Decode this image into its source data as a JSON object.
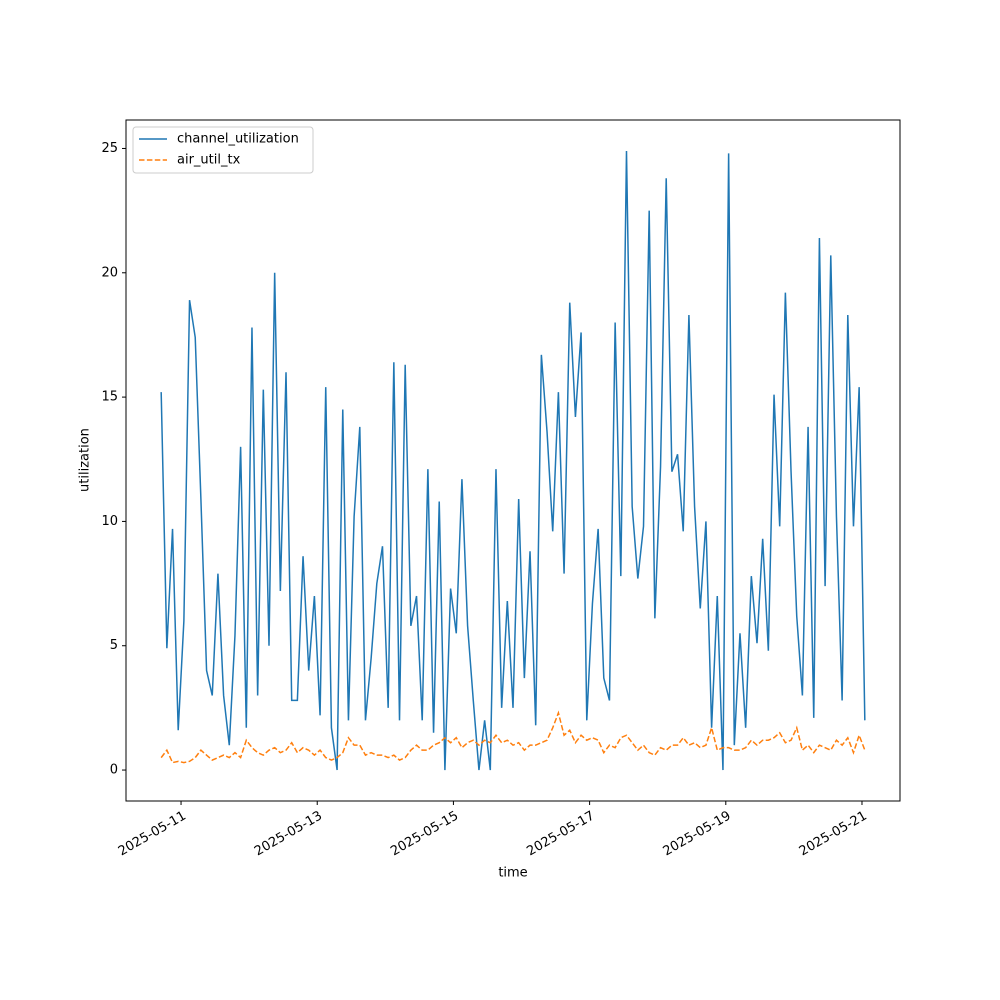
{
  "chart_data": {
    "type": "line",
    "xlabel": "time",
    "ylabel": "utilization",
    "x": [
      "2025-05-10 17:00",
      "2025-05-10 19:00",
      "2025-05-10 21:00",
      "2025-05-10 23:00",
      "2025-05-11 01:00",
      "2025-05-11 03:00",
      "2025-05-11 05:00",
      "2025-05-11 07:00",
      "2025-05-11 09:00",
      "2025-05-11 11:00",
      "2025-05-11 13:00",
      "2025-05-11 15:00",
      "2025-05-11 17:00",
      "2025-05-11 19:00",
      "2025-05-11 21:00",
      "2025-05-11 23:00",
      "2025-05-12 01:00",
      "2025-05-12 03:00",
      "2025-05-12 05:00",
      "2025-05-12 07:00",
      "2025-05-12 09:00",
      "2025-05-12 11:00",
      "2025-05-12 13:00",
      "2025-05-12 15:00",
      "2025-05-12 17:00",
      "2025-05-12 19:00",
      "2025-05-12 21:00",
      "2025-05-12 23:00",
      "2025-05-13 01:00",
      "2025-05-13 03:00",
      "2025-05-13 05:00",
      "2025-05-13 07:00",
      "2025-05-13 09:00",
      "2025-05-13 11:00",
      "2025-05-13 13:00",
      "2025-05-13 15:00",
      "2025-05-13 17:00",
      "2025-05-13 19:00",
      "2025-05-13 21:00",
      "2025-05-13 23:00",
      "2025-05-14 01:00",
      "2025-05-14 03:00",
      "2025-05-14 05:00",
      "2025-05-14 07:00",
      "2025-05-14 09:00",
      "2025-05-14 11:00",
      "2025-05-14 13:00",
      "2025-05-14 15:00",
      "2025-05-14 17:00",
      "2025-05-14 19:00",
      "2025-05-14 21:00",
      "2025-05-14 23:00",
      "2025-05-15 01:00",
      "2025-05-15 03:00",
      "2025-05-15 05:00",
      "2025-05-15 07:00",
      "2025-05-15 09:00",
      "2025-05-15 11:00",
      "2025-05-15 13:00",
      "2025-05-15 15:00",
      "2025-05-15 17:00",
      "2025-05-15 19:00",
      "2025-05-15 21:00",
      "2025-05-15 23:00",
      "2025-05-16 01:00",
      "2025-05-16 03:00",
      "2025-05-16 05:00",
      "2025-05-16 07:00",
      "2025-05-16 09:00",
      "2025-05-16 11:00",
      "2025-05-16 13:00",
      "2025-05-16 15:00",
      "2025-05-16 17:00",
      "2025-05-16 19:00",
      "2025-05-16 21:00",
      "2025-05-16 23:00",
      "2025-05-17 01:00",
      "2025-05-17 03:00",
      "2025-05-17 05:00",
      "2025-05-17 07:00",
      "2025-05-17 09:00",
      "2025-05-17 11:00",
      "2025-05-17 13:00",
      "2025-05-17 15:00",
      "2025-05-17 17:00",
      "2025-05-17 19:00",
      "2025-05-17 21:00",
      "2025-05-17 23:00",
      "2025-05-18 01:00",
      "2025-05-18 03:00",
      "2025-05-18 05:00",
      "2025-05-18 07:00",
      "2025-05-18 09:00",
      "2025-05-18 11:00",
      "2025-05-18 13:00",
      "2025-05-18 15:00",
      "2025-05-18 17:00",
      "2025-05-18 19:00",
      "2025-05-18 21:00",
      "2025-05-18 23:00",
      "2025-05-19 01:00",
      "2025-05-19 03:00",
      "2025-05-19 05:00",
      "2025-05-19 07:00",
      "2025-05-19 09:00",
      "2025-05-19 11:00",
      "2025-05-19 13:00",
      "2025-05-19 15:00",
      "2025-05-19 17:00",
      "2025-05-19 19:00",
      "2025-05-19 21:00",
      "2025-05-19 23:00",
      "2025-05-20 01:00",
      "2025-05-20 03:00",
      "2025-05-20 05:00",
      "2025-05-20 07:00",
      "2025-05-20 09:00",
      "2025-05-20 11:00",
      "2025-05-20 13:00",
      "2025-05-20 15:00",
      "2025-05-20 17:00",
      "2025-05-20 19:00",
      "2025-05-20 21:00",
      "2025-05-20 23:00",
      "2025-05-21 01:00"
    ],
    "series": [
      {
        "name": "channel_utilization",
        "color": "#1f77b4",
        "linestyle": "solid",
        "values": [
          15.2,
          4.9,
          9.7,
          1.6,
          6,
          18.9,
          17.4,
          10.9,
          4,
          3,
          7.9,
          3,
          1,
          5.4,
          13,
          1.7,
          17.8,
          3,
          15.3,
          5,
          20,
          7.2,
          16,
          2.8,
          2.8,
          8.6,
          4,
          7,
          2.2,
          15.4,
          1.7,
          0,
          14.5,
          2,
          10.2,
          13.8,
          2,
          4.5,
          7.5,
          9,
          2.5,
          16.4,
          2,
          16.3,
          5.8,
          7,
          2,
          12.1,
          1.5,
          10.8,
          0,
          7.3,
          5.5,
          11.7,
          5.8,
          2.8,
          0,
          2,
          0,
          12.1,
          2.5,
          6.8,
          2.5,
          10.9,
          3.7,
          8.8,
          1.8,
          16.7,
          13.6,
          9.6,
          15.2,
          7.9,
          18.8,
          14.2,
          17.6,
          2,
          6.7,
          9.7,
          3.7,
          2.8,
          18,
          7.8,
          24.9,
          10.6,
          7.7,
          9.8,
          22.5,
          6.1,
          12.2,
          23.8,
          12,
          12.7,
          9.6,
          18.3,
          10.6,
          6.5,
          10,
          1.7,
          7,
          0,
          24.8,
          1,
          5.5,
          1.7,
          7.8,
          5.1,
          9.3,
          4.8,
          15.1,
          9.8,
          19.2,
          12,
          6.2,
          3,
          13.8,
          2.1,
          21.4,
          7.4,
          20.7,
          10.2,
          2.8,
          18.3,
          9.8,
          15.4,
          2
        ]
      },
      {
        "name": "air_util_tx",
        "color": "#ff7f0e",
        "linestyle": "dashed",
        "values": [
          0.5,
          0.8,
          0.3,
          0.35,
          0.3,
          0.35,
          0.5,
          0.8,
          0.6,
          0.4,
          0.5,
          0.6,
          0.5,
          0.7,
          0.5,
          1.2,
          0.9,
          0.7,
          0.6,
          0.8,
          0.9,
          0.7,
          0.8,
          1.1,
          0.7,
          0.9,
          0.8,
          0.6,
          0.8,
          0.5,
          0.4,
          0.5,
          0.7,
          1.3,
          1.0,
          1.0,
          0.6,
          0.7,
          0.6,
          0.6,
          0.5,
          0.6,
          0.4,
          0.5,
          0.8,
          1.0,
          0.8,
          0.8,
          1.0,
          1.1,
          1.3,
          1.1,
          1.3,
          0.9,
          1.1,
          1.2,
          1.0,
          1.2,
          1.1,
          1.4,
          1.1,
          1.2,
          1.0,
          1.1,
          0.8,
          1.0,
          1.0,
          1.1,
          1.2,
          1.7,
          2.3,
          1.4,
          1.6,
          1.1,
          1.4,
          1.2,
          1.3,
          1.2,
          0.7,
          1.0,
          0.9,
          1.3,
          1.4,
          1.1,
          0.8,
          1.0,
          0.7,
          0.6,
          0.9,
          0.8,
          1.0,
          1.0,
          1.3,
          1.0,
          1.1,
          0.9,
          1.0,
          1.7,
          0.8,
          0.9,
          0.9,
          0.8,
          0.8,
          0.9,
          1.2,
          1.0,
          1.2,
          1.2,
          1.3,
          1.5,
          1.1,
          1.2,
          1.7,
          0.8,
          1.0,
          0.7,
          1.0,
          0.9,
          0.8,
          1.2,
          1.0,
          1.3,
          0.7,
          1.4,
          0.8
        ]
      }
    ],
    "xlim": [
      "2025-05-10 04:36",
      "2025-05-21 13:24"
    ],
    "xticks": [
      "2025-05-11",
      "2025-05-13",
      "2025-05-15",
      "2025-05-17",
      "2025-05-19",
      "2025-05-21"
    ],
    "ylim": [
      -1.245,
      26.145
    ],
    "yticks": [
      0,
      5,
      10,
      15,
      20,
      25
    ],
    "legend": "upper left"
  }
}
